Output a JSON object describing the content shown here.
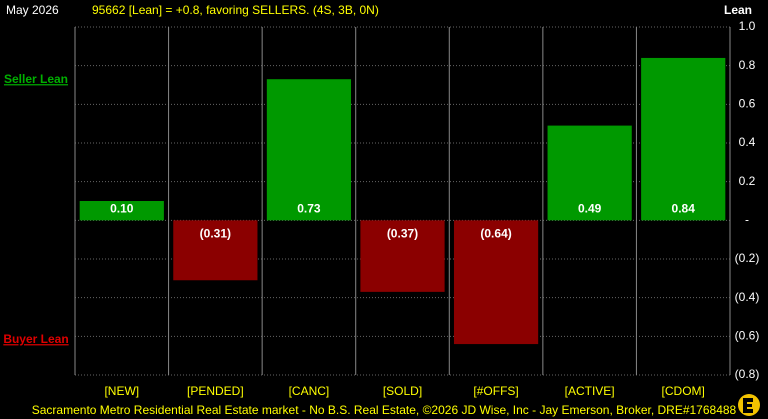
{
  "chart_data": {
    "type": "bar",
    "date_label": "May 2026",
    "title": "95662 [Lean] = +0.8, favoring SELLERS. (4S, 3B, 0N)",
    "y_label": "Lean",
    "top_annotation": "Seller Lean",
    "bottom_annotation": "Buyer Lean",
    "footer": "Sacramento Metro Residential Real Estate market - No B.S. Real Estate, ©2026 JD Wise, Inc - Jay Emerson, Broker, DRE#1768488",
    "categories": [
      "[NEW]",
      "[PENDED]",
      "[CANC]",
      "[SOLD]",
      "[#OFFS]",
      "[ACTIVE]",
      "[CDOM]"
    ],
    "values": [
      0.1,
      -0.31,
      0.73,
      -0.37,
      -0.64,
      0.49,
      0.84
    ],
    "value_labels": [
      "0.10",
      "(0.31)",
      "0.73",
      "(0.37)",
      "(0.64)",
      "0.49",
      "0.84"
    ],
    "positive_color": "#009900",
    "negative_color": "#8b0000",
    "ylim": [
      -0.8,
      1
    ],
    "yticks": [
      {
        "value": 1,
        "label": "1.0"
      },
      0.8,
      0.6,
      0.4,
      0.2,
      {
        "value": 0,
        "label": "-"
      },
      {
        "value": -0.2,
        "label": "(0.2)"
      },
      {
        "value": -0.4,
        "label": "(0.4)"
      },
      {
        "value": -0.6,
        "label": "(0.6)"
      },
      {
        "value": -0.8,
        "label": "(0.8)"
      }
    ],
    "grid": true
  }
}
